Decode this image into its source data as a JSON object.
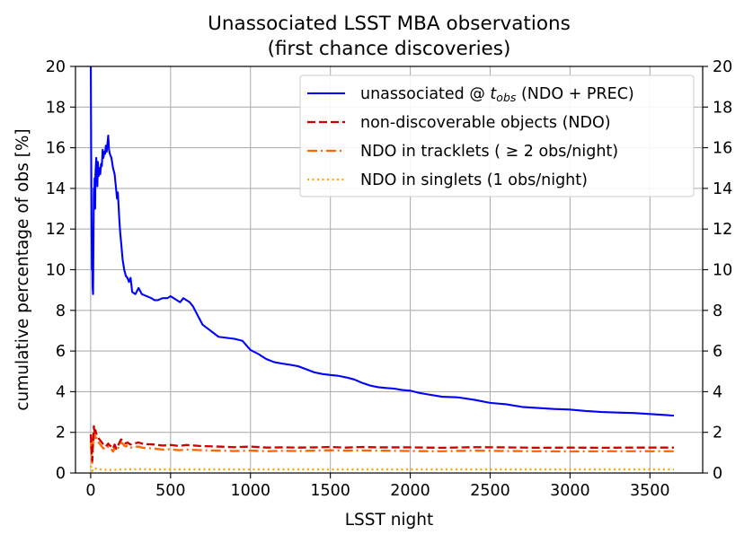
{
  "chart_data": {
    "type": "line",
    "title": "Unassociated LSST MBA observations",
    "subtitle": "(first chance discoveries)",
    "xlabel": "LSST night",
    "ylabel": "cumulative percentage of obs [%]",
    "xlim": [
      -95,
      3830
    ],
    "ylim": [
      0,
      20
    ],
    "xticks": [
      0,
      500,
      1000,
      1500,
      2000,
      2500,
      3000,
      3500
    ],
    "xtick_labels": [
      "0",
      "500",
      "1000",
      "1500",
      "2000",
      "2500",
      "3000",
      "3500"
    ],
    "yticks": [
      0,
      2,
      4,
      6,
      8,
      10,
      12,
      14,
      16,
      18,
      20
    ],
    "ytick_labels": [
      "0",
      "2",
      "4",
      "6",
      "8",
      "10",
      "12",
      "14",
      "16",
      "18",
      "20"
    ],
    "right_axis_mirrored": true,
    "grid": true,
    "legend_position": "top-right",
    "series": [
      {
        "name": "unassociated @ t_obs (NDO + PREC)",
        "legend_prefix": "unassociated @ ",
        "legend_math": "t",
        "legend_sub": "obs",
        "legend_suffix": " (NDO + PREC)",
        "color": "#0000ff",
        "style": "solid",
        "x": [
          1,
          3,
          6,
          8,
          10,
          12,
          15,
          18,
          20,
          22,
          25,
          28,
          30,
          35,
          38,
          42,
          45,
          50,
          55,
          60,
          65,
          70,
          75,
          80,
          85,
          90,
          95,
          100,
          105,
          110,
          115,
          120,
          130,
          140,
          150,
          160,
          165,
          170,
          175,
          180,
          185,
          190,
          200,
          210,
          220,
          230,
          240,
          250,
          260,
          280,
          300,
          320,
          350,
          380,
          400,
          420,
          450,
          480,
          500,
          520,
          540,
          560,
          580,
          600,
          620,
          640,
          660,
          680,
          700,
          750,
          800,
          850,
          900,
          950,
          1000,
          1050,
          1100,
          1150,
          1200,
          1250,
          1300,
          1350,
          1400,
          1450,
          1500,
          1550,
          1600,
          1650,
          1700,
          1750,
          1800,
          1850,
          1900,
          1950,
          2000,
          2050,
          2100,
          2200,
          2300,
          2400,
          2500,
          2600,
          2700,
          2800,
          2900,
          3000,
          3100,
          3200,
          3300,
          3400,
          3500,
          3600,
          3650
        ],
        "y": [
          20,
          16,
          12,
          10,
          11.5,
          9.2,
          8.8,
          12,
          14,
          13.2,
          14.5,
          13,
          14.7,
          15.5,
          14.8,
          14.1,
          15.3,
          14.6,
          15,
          14.7,
          15.2,
          15.1,
          15.9,
          15.5,
          15.8,
          15.7,
          16.1,
          15.8,
          16.2,
          16.6,
          15.9,
          15.7,
          15.5,
          15,
          14.7,
          13.9,
          13.5,
          13.8,
          13.1,
          12.4,
          11.8,
          11.4,
          10.5,
          10,
          9.7,
          9.6,
          9.4,
          9.6,
          8.9,
          8.8,
          9.1,
          8.8,
          8.7,
          8.6,
          8.5,
          8.5,
          8.6,
          8.6,
          8.7,
          8.6,
          8.5,
          8.4,
          8.6,
          8.5,
          8.4,
          8.2,
          7.9,
          7.6,
          7.3,
          7,
          6.7,
          6.65,
          6.6,
          6.5,
          6.05,
          5.85,
          5.6,
          5.45,
          5.38,
          5.32,
          5.25,
          5.1,
          4.95,
          4.87,
          4.82,
          4.78,
          4.7,
          4.6,
          4.43,
          4.3,
          4.22,
          4.18,
          4.15,
          4.08,
          4.05,
          3.95,
          3.88,
          3.75,
          3.72,
          3.6,
          3.45,
          3.38,
          3.25,
          3.2,
          3.15,
          3.12,
          3.05,
          3,
          2.97,
          2.95,
          2.9,
          2.85,
          2.82
        ]
      },
      {
        "name": "non-discoverable objects (NDO)",
        "color": "#cc0000",
        "style": "dashed",
        "x": [
          1,
          5,
          10,
          15,
          20,
          25,
          30,
          40,
          50,
          60,
          70,
          80,
          90,
          100,
          110,
          120,
          130,
          140,
          150,
          160,
          170,
          180,
          190,
          200,
          210,
          220,
          230,
          250,
          270,
          300,
          320,
          350,
          400,
          450,
          500,
          550,
          600,
          700,
          800,
          900,
          1000,
          1100,
          1200,
          1300,
          1400,
          1500,
          1600,
          1700,
          1800,
          2000,
          2200,
          2400,
          2600,
          2800,
          3000,
          3200,
          3400,
          3650
        ],
        "y": [
          1.9,
          1.1,
          0.6,
          1.6,
          2.3,
          1.9,
          2.1,
          1.8,
          1.7,
          1.6,
          1.5,
          1.4,
          1.45,
          1.35,
          1.45,
          1.35,
          1.3,
          1.2,
          1.4,
          1.2,
          1.3,
          1.5,
          1.65,
          1.6,
          1.5,
          1.45,
          1.5,
          1.4,
          1.45,
          1.5,
          1.45,
          1.42,
          1.4,
          1.35,
          1.38,
          1.33,
          1.38,
          1.32,
          1.3,
          1.27,
          1.3,
          1.25,
          1.26,
          1.25,
          1.26,
          1.28,
          1.25,
          1.28,
          1.26,
          1.26,
          1.24,
          1.27,
          1.26,
          1.24,
          1.25,
          1.24,
          1.25,
          1.25
        ]
      },
      {
        "name": "NDO in tracklets ( ≥ 2 obs/night)",
        "color": "#ff6600",
        "style": "dashdot",
        "x": [
          1,
          5,
          10,
          15,
          20,
          25,
          30,
          40,
          50,
          60,
          70,
          80,
          90,
          100,
          110,
          120,
          130,
          140,
          150,
          160,
          170,
          180,
          190,
          200,
          210,
          220,
          230,
          250,
          270,
          300,
          320,
          350,
          400,
          450,
          500,
          550,
          600,
          700,
          800,
          900,
          1000,
          1100,
          1200,
          1300,
          1400,
          1500,
          1600,
          1700,
          1800,
          2000,
          2200,
          2400,
          2600,
          2800,
          3000,
          3200,
          3400,
          3650
        ],
        "y": [
          1.6,
          0.9,
          0.5,
          1.4,
          2.1,
          1.7,
          1.9,
          1.6,
          1.5,
          1.4,
          1.3,
          1.2,
          1.25,
          1.2,
          1.3,
          1.2,
          1.15,
          1.05,
          1.25,
          1.1,
          1.2,
          1.35,
          1.5,
          1.45,
          1.35,
          1.3,
          1.35,
          1.25,
          1.28,
          1.3,
          1.25,
          1.22,
          1.2,
          1.15,
          1.17,
          1.12,
          1.15,
          1.12,
          1.1,
          1.08,
          1.1,
          1.07,
          1.09,
          1.08,
          1.1,
          1.12,
          1.1,
          1.11,
          1.1,
          1.08,
          1.07,
          1.1,
          1.08,
          1.07,
          1.06,
          1.07,
          1.07,
          1.07
        ]
      },
      {
        "name": "NDO in singlets (1 obs/night)",
        "color": "#ffa500",
        "style": "dotted",
        "x": [
          1,
          5,
          10,
          15,
          20,
          30,
          40,
          60,
          80,
          100,
          150,
          200,
          300,
          400,
          500,
          700,
          1000,
          1500,
          2000,
          2500,
          3000,
          3500,
          3650
        ],
        "y": [
          0.35,
          0.25,
          0.1,
          0.2,
          0.25,
          0.22,
          0.2,
          0.18,
          0.17,
          0.15,
          0.16,
          0.18,
          0.19,
          0.18,
          0.18,
          0.18,
          0.18,
          0.18,
          0.18,
          0.18,
          0.18,
          0.18,
          0.18
        ]
      }
    ]
  }
}
